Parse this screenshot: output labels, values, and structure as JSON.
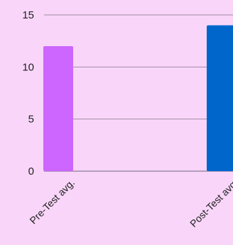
{
  "chart_data": {
    "type": "bar",
    "title": "",
    "xlabel": "",
    "ylabel": "",
    "categories": [
      "Pre-Test avg.",
      "Post-Test avg."
    ],
    "values": [
      12,
      14
    ],
    "colors": [
      "#cc66ff",
      "#0066cc"
    ],
    "ylim": [
      0,
      15
    ],
    "yticks": [
      0,
      5,
      10,
      15
    ],
    "grid": true,
    "legend": "none"
  },
  "colors": {
    "background": "#f9d6f9",
    "grid": "#a08aa8",
    "axis": "#a08aa8",
    "text": "#222222"
  }
}
